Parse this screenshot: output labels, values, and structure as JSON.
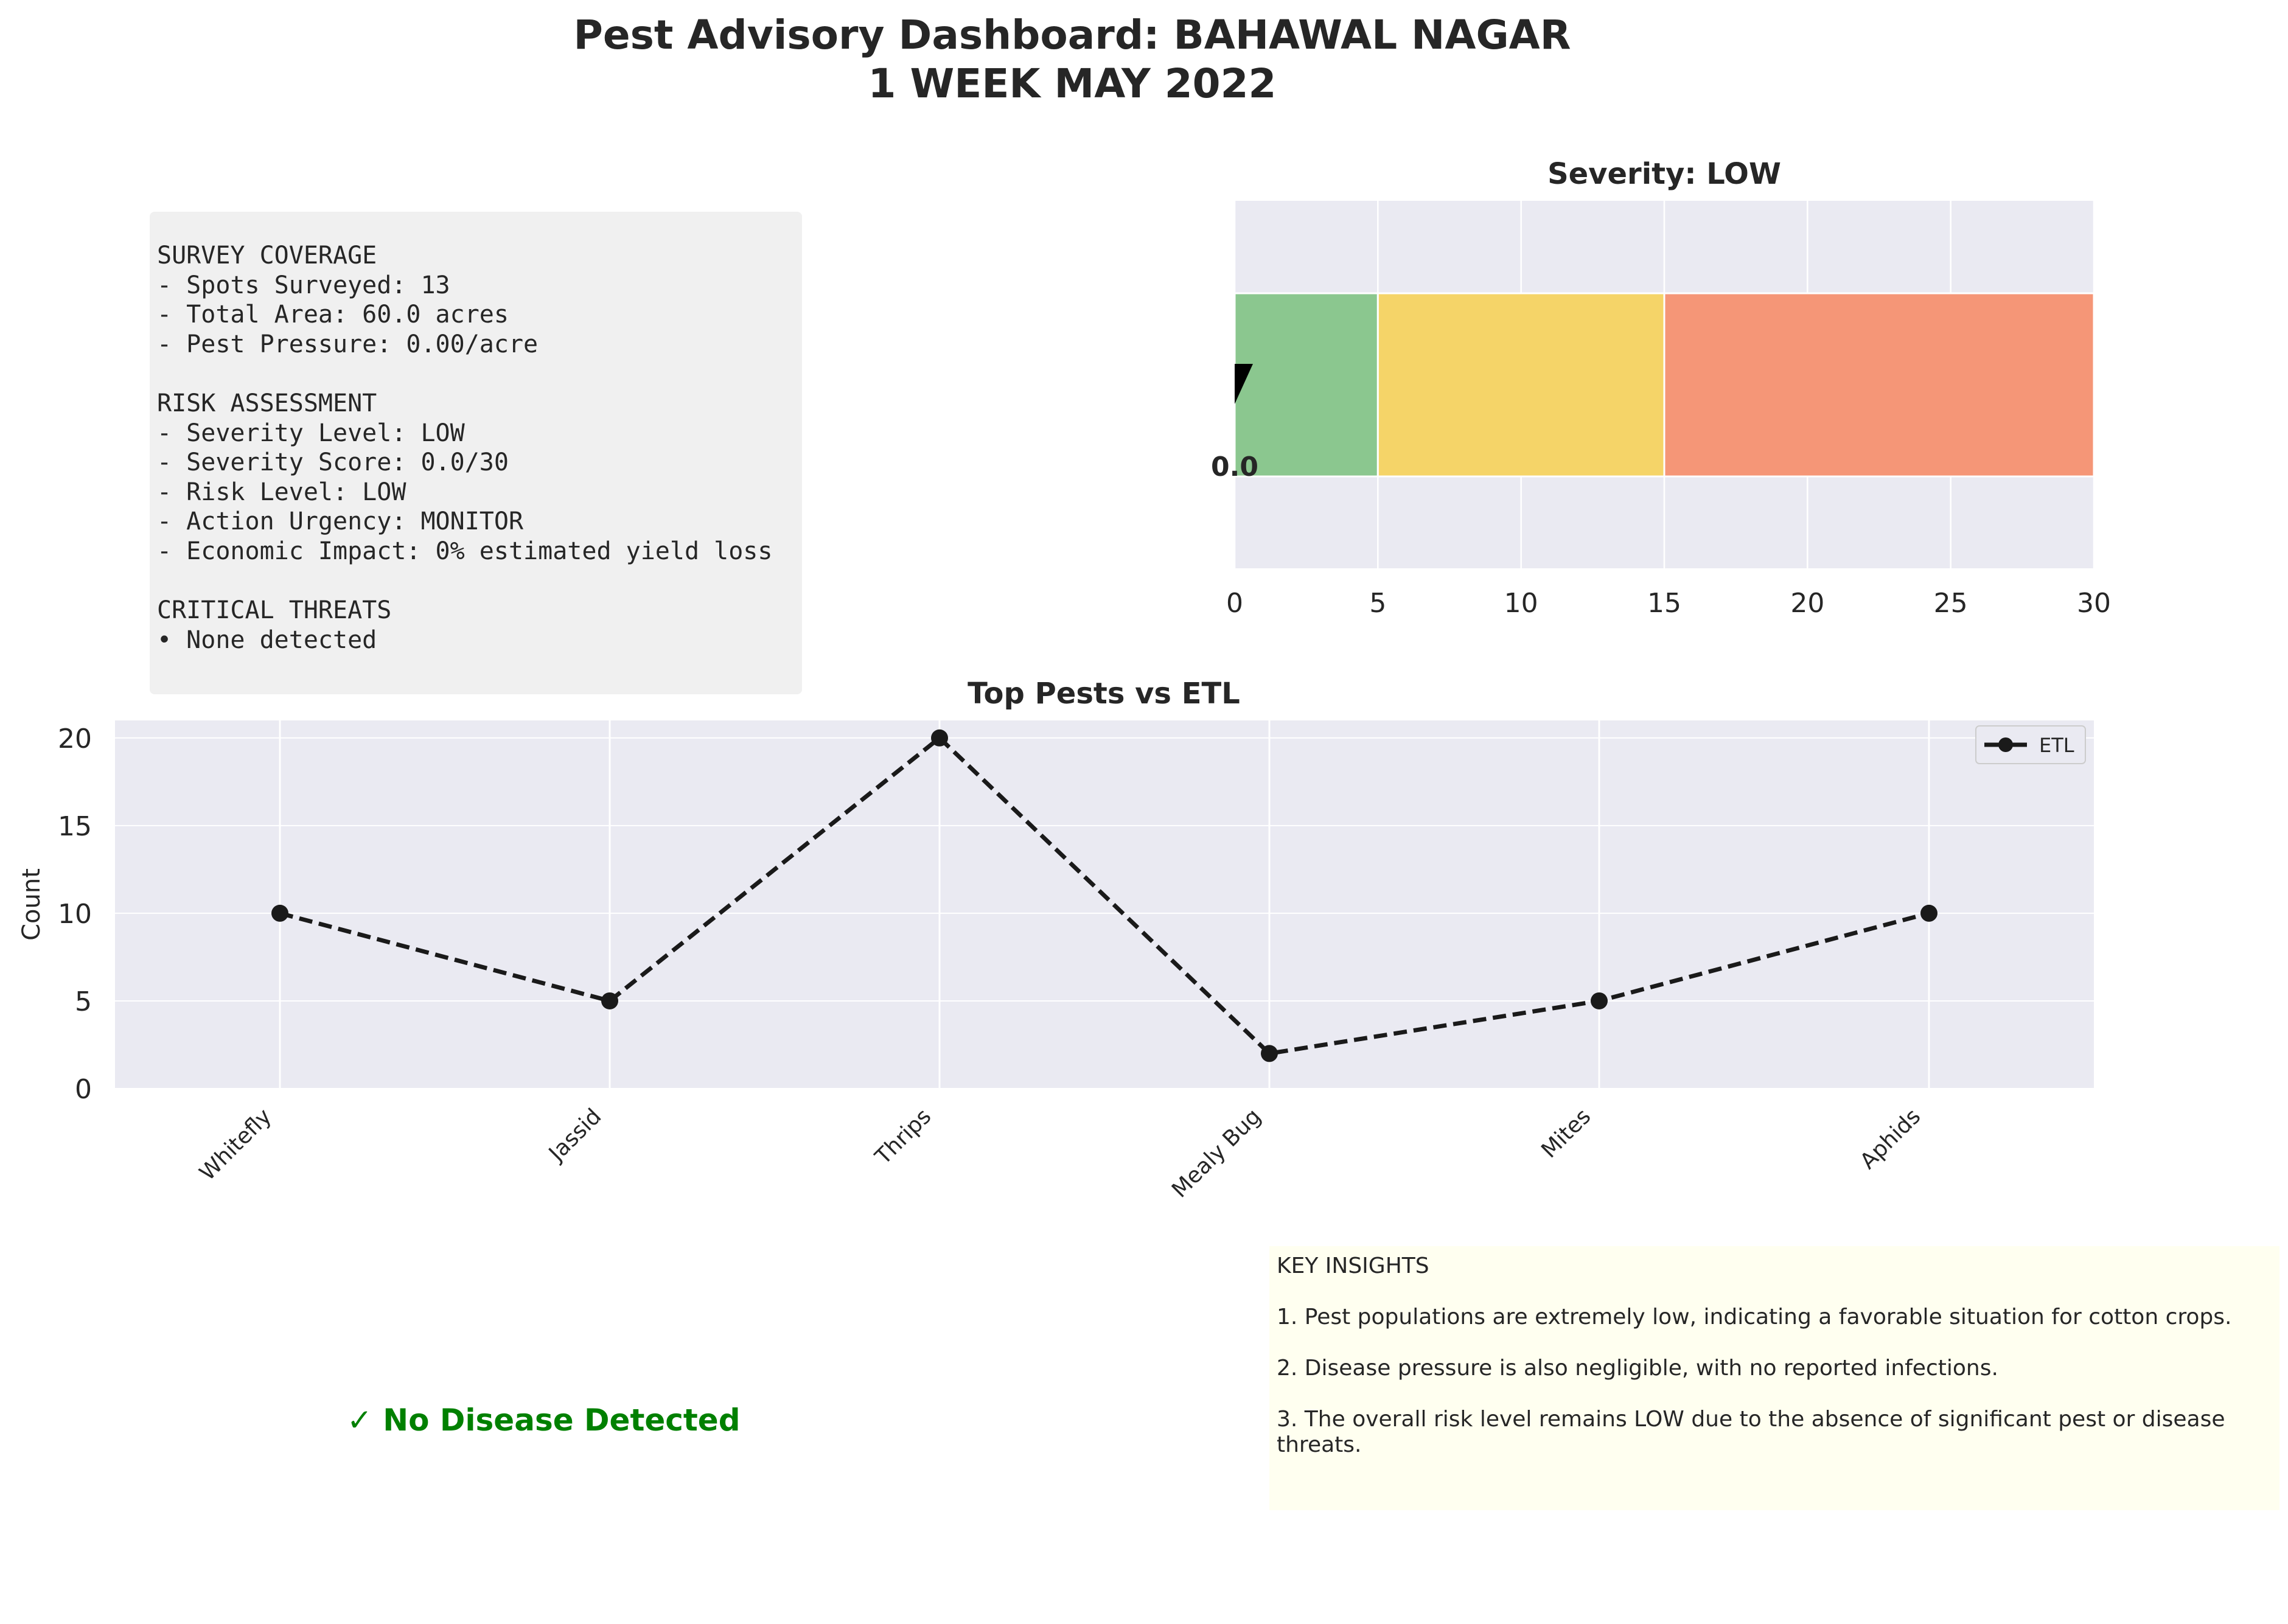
{
  "header": {
    "title_line1": "Pest Advisory Dashboard: BAHAWAL NAGAR",
    "title_line2": "1 WEEK MAY 2022"
  },
  "summary": {
    "sections": [
      {
        "heading": "SURVEY COVERAGE",
        "lines": [
          "- Spots Surveyed: 13",
          "- Total Area: 60.0 acres",
          "- Pest Pressure: 0.00/acre"
        ]
      },
      {
        "heading": "RISK ASSESSMENT",
        "lines": [
          "- Severity Level: LOW",
          "- Severity Score: 0.0/30",
          "- Risk Level: LOW",
          "- Action Urgency: MONITOR",
          "- Economic Impact: 0% estimated yield loss"
        ]
      },
      {
        "heading": "CRITICAL THREATS",
        "lines": [
          "• None detected"
        ]
      }
    ]
  },
  "chart_data": [
    {
      "type": "bar",
      "title": "Severity: LOW",
      "xlim": [
        0,
        30
      ],
      "xticks": [
        0,
        5,
        10,
        15,
        20,
        25,
        30
      ],
      "grid": true,
      "bands": [
        {
          "from": 0,
          "to": 5,
          "color": "#8bc78f"
        },
        {
          "from": 5,
          "to": 15,
          "color": "#f5d468"
        },
        {
          "from": 15,
          "to": 30,
          "color": "#f59677"
        }
      ],
      "value": 0.0,
      "value_label": "0.0"
    },
    {
      "type": "line",
      "title": "Top Pests vs ETL",
      "categories": [
        "Whitefly",
        "Jassid",
        "Thrips",
        "Mealy Bug",
        "Mites",
        "Aphids"
      ],
      "series": [
        {
          "name": "ETL",
          "values": [
            10,
            5,
            20,
            2,
            5,
            10
          ],
          "color": "#1a1a1a",
          "style": "dashed",
          "marker": "circle"
        }
      ],
      "ylabel": "Count",
      "xlabel": "",
      "ylim": [
        0,
        21
      ],
      "yticks": [
        0,
        5,
        10,
        15,
        20
      ],
      "grid": true,
      "legend": "top-right"
    }
  ],
  "disease": {
    "status_label": "✓ No Disease Detected",
    "color": "#008000"
  },
  "insights": {
    "title": "KEY INSIGHTS",
    "items": [
      "1. Pest populations are extremely low, indicating a favorable situation for cotton crops.",
      "2. Disease pressure is also negligible, with no reported infections.",
      "3. The overall risk level remains LOW due to the absence of significant pest or disease threats."
    ]
  },
  "colors": {
    "axes_bg": "#eaeaf2",
    "grid": "#ffffff",
    "summary_bg": "#f0f0f0",
    "insights_bg": "#fffff0"
  }
}
